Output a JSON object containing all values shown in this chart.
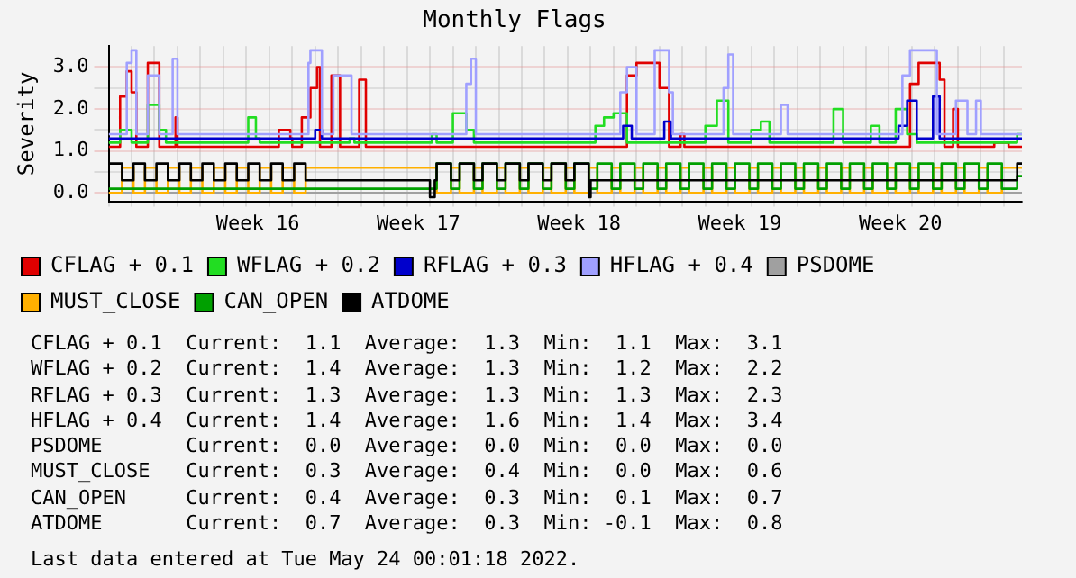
{
  "chart_data": {
    "type": "step",
    "title": "Monthly Flags",
    "ylabel": "Severity",
    "xlim": [
      "2022-04-15T00:00",
      "2022-05-24T19:00"
    ],
    "xticks": [
      {
        "value": "2022-04-15",
        "label": null
      },
      {
        "value": "2022-04-16",
        "label": null
      },
      {
        "value": "2022-04-17",
        "label": null
      },
      {
        "value": "2022-04-18",
        "label": null
      },
      {
        "value": "2022-04-19",
        "label": null
      },
      {
        "value": "2022-04-20",
        "label": null
      },
      {
        "value": "2022-04-21",
        "label": null
      },
      {
        "value": "2022-04-21T12:00",
        "label": "Week 16"
      },
      {
        "value": "2022-04-22",
        "label": null
      },
      {
        "value": "2022-04-23",
        "label": null
      },
      {
        "value": "2022-04-24",
        "label": null
      },
      {
        "value": "2022-04-25",
        "label": null
      },
      {
        "value": "2022-04-26",
        "label": null
      },
      {
        "value": "2022-04-27",
        "label": null
      },
      {
        "value": "2022-04-28",
        "label": null
      },
      {
        "value": "2022-04-28T12:00",
        "label": "Week 17"
      },
      {
        "value": "2022-04-29",
        "label": null
      },
      {
        "value": "2022-04-30",
        "label": null
      },
      {
        "value": "2022-05-01",
        "label": null
      },
      {
        "value": "2022-05-02",
        "label": null
      },
      {
        "value": "2022-05-03",
        "label": null
      },
      {
        "value": "2022-05-04",
        "label": null
      },
      {
        "value": "2022-05-05",
        "label": null
      },
      {
        "value": "2022-05-05T12:00",
        "label": "Week 18"
      },
      {
        "value": "2022-05-06",
        "label": null
      },
      {
        "value": "2022-05-07",
        "label": null
      },
      {
        "value": "2022-05-08",
        "label": null
      },
      {
        "value": "2022-05-09",
        "label": null
      },
      {
        "value": "2022-05-10",
        "label": null
      },
      {
        "value": "2022-05-11",
        "label": null
      },
      {
        "value": "2022-05-12",
        "label": null
      },
      {
        "value": "2022-05-12T12:00",
        "label": "Week 19"
      },
      {
        "value": "2022-05-13",
        "label": null
      },
      {
        "value": "2022-05-14",
        "label": null
      },
      {
        "value": "2022-05-15",
        "label": null
      },
      {
        "value": "2022-05-16",
        "label": null
      },
      {
        "value": "2022-05-17",
        "label": null
      },
      {
        "value": "2022-05-18",
        "label": null
      },
      {
        "value": "2022-05-19",
        "label": null
      },
      {
        "value": "2022-05-19T12:00",
        "label": "Week 20"
      },
      {
        "value": "2022-05-20",
        "label": null
      },
      {
        "value": "2022-05-21",
        "label": null
      },
      {
        "value": "2022-05-22",
        "label": null
      },
      {
        "value": "2022-05-23",
        "label": null
      },
      {
        "value": "2022-05-24",
        "label": null
      }
    ],
    "ylim": [
      -0.2,
      3.5
    ],
    "yticks": [
      {
        "value": 0,
        "label": "0.0"
      },
      {
        "value": 0.5,
        "label": null
      },
      {
        "value": 1,
        "label": "1.0"
      },
      {
        "value": 1.5,
        "label": null
      },
      {
        "value": 2,
        "label": "2.0"
      },
      {
        "value": 2.5,
        "label": null
      },
      {
        "value": 3,
        "label": "3.0"
      }
    ],
    "grid": true,
    "legend": "bottom",
    "line_style": "solid",
    "marker": "none",
    "series": [
      {
        "name": "CFLAG + 0.1",
        "color": "#e00000",
        "x": [
          "2022-04-15T00:00",
          "2022-04-15T12:00",
          "2022-04-15T19:00",
          "2022-04-16T00:00",
          "2022-04-16T05:00",
          "2022-04-16T17:00",
          "2022-04-17T05:00",
          "2022-04-17T22:00",
          "2022-04-18T00:00",
          "2022-04-22T10:00",
          "2022-04-22T22:00",
          "2022-04-23T00:00",
          "2022-04-23T10:00",
          "2022-04-23T19:00",
          "2022-04-24T02:00",
          "2022-04-24T05:00",
          "2022-04-24T17:00",
          "2022-04-25T02:00",
          "2022-04-25T22:00",
          "2022-04-26T05:00",
          "2022-05-07T14:00",
          "2022-05-08T00:00",
          "2022-05-09T00:00",
          "2022-05-09T10:00",
          "2022-05-09T22:00",
          "2022-05-10T02:00",
          "2022-05-19T22:00",
          "2022-05-20T07:00",
          "2022-05-21T05:00",
          "2022-05-21T10:00",
          "2022-05-21T19:00",
          "2022-05-22T00:00",
          "2022-05-23T14:00",
          "2022-05-24T05:00",
          "2022-05-24T19:00"
        ],
        "values": [
          1.1,
          2.3,
          2.9,
          2.4,
          1.1,
          3.1,
          1.1,
          1.8,
          1.1,
          1.5,
          1.3,
          1.1,
          1.8,
          2.5,
          3.0,
          1.1,
          2.8,
          1.1,
          2.7,
          1.1,
          2.8,
          3.1,
          2.5,
          1.1,
          1.4,
          1.1,
          2.6,
          3.1,
          2.7,
          1.1,
          2.0,
          1.1,
          1.2,
          1.1,
          1.1
        ]
      },
      {
        "name": "WFLAG + 0.2",
        "color": "#22dd22",
        "x": [
          "2022-04-15T00:00",
          "2022-04-15T12:00",
          "2022-04-16T00:00",
          "2022-04-16T17:00",
          "2022-04-17T05:00",
          "2022-04-17T12:00",
          "2022-04-21T02:00",
          "2022-04-21T10:00",
          "2022-04-21T14:00",
          "2022-04-25T12:00",
          "2022-04-25T17:00",
          "2022-04-29T02:00",
          "2022-04-29T07:00",
          "2022-04-30T00:00",
          "2022-04-30T14:00",
          "2022-04-30T22:00",
          "2022-05-06T05:00",
          "2022-05-06T14:00",
          "2022-05-07T00:00",
          "2022-05-07T14:00",
          "2022-05-11T00:00",
          "2022-05-11T12:00",
          "2022-05-12T00:00",
          "2022-05-13T00:00",
          "2022-05-13T10:00",
          "2022-05-13T19:00",
          "2022-05-16T14:00",
          "2022-05-17T00:00",
          "2022-05-18T05:00",
          "2022-05-18T14:00",
          "2022-05-19T07:00",
          "2022-05-19T19:00",
          "2022-05-20T05:00",
          "2022-05-24T14:00",
          "2022-05-24T19:00"
        ],
        "values": [
          1.2,
          1.5,
          1.2,
          2.1,
          1.5,
          1.2,
          1.8,
          1.3,
          1.2,
          1.3,
          1.2,
          1.4,
          1.2,
          1.9,
          1.5,
          1.2,
          1.6,
          1.8,
          1.9,
          1.2,
          1.6,
          2.2,
          1.2,
          1.5,
          1.7,
          1.2,
          2.0,
          1.2,
          1.6,
          1.2,
          2.0,
          1.4,
          1.2,
          1.4,
          1.4
        ]
      },
      {
        "name": "RFLAG + 0.3",
        "color": "#0000cc",
        "x": [
          "2022-04-15T00:00",
          "2022-04-24T00:00",
          "2022-04-24T07:00",
          "2022-05-07T10:00",
          "2022-05-07T19:00",
          "2022-05-09T05:00",
          "2022-05-09T12:00",
          "2022-05-19T10:00",
          "2022-05-19T19:00",
          "2022-05-20T05:00",
          "2022-05-20T22:00",
          "2022-05-21T05:00",
          "2022-05-24T19:00"
        ],
        "values": [
          1.3,
          1.5,
          1.3,
          1.6,
          1.3,
          1.7,
          1.3,
          1.6,
          2.2,
          1.3,
          2.3,
          1.3,
          1.3
        ]
      },
      {
        "name": "HFLAG + 0.4",
        "color": "#a0a0ff",
        "x": [
          "2022-04-15T00:00",
          "2022-04-15T19:00",
          "2022-04-16T00:00",
          "2022-04-16T05:00",
          "2022-04-16T17:00",
          "2022-04-17T05:00",
          "2022-04-17T19:00",
          "2022-04-18T00:00",
          "2022-04-23T17:00",
          "2022-04-23T19:00",
          "2022-04-24T07:00",
          "2022-04-24T19:00",
          "2022-04-25T14:00",
          "2022-04-30T14:00",
          "2022-04-30T19:00",
          "2022-05-01T00:00",
          "2022-05-07T07:00",
          "2022-05-07T14:00",
          "2022-05-08T00:00",
          "2022-05-08T19:00",
          "2022-05-09T10:00",
          "2022-05-09T14:00",
          "2022-05-11T19:00",
          "2022-05-12T00:00",
          "2022-05-12T05:00",
          "2022-05-14T07:00",
          "2022-05-14T14:00",
          "2022-05-19T14:00",
          "2022-05-19T22:00",
          "2022-05-21T02:00",
          "2022-05-21T22:00",
          "2022-05-22T10:00",
          "2022-05-22T19:00",
          "2022-05-23T00:00",
          "2022-05-24T19:00"
        ],
        "values": [
          1.4,
          3.1,
          3.4,
          1.4,
          2.8,
          1.4,
          3.2,
          1.4,
          3.1,
          3.4,
          1.4,
          2.8,
          1.4,
          2.6,
          3.2,
          1.4,
          2.4,
          3.0,
          1.4,
          3.4,
          2.4,
          1.4,
          2.5,
          3.3,
          1.4,
          2.1,
          1.4,
          2.8,
          3.4,
          1.4,
          2.2,
          1.4,
          2.2,
          1.4,
          1.4
        ]
      },
      {
        "name": "PSDOME",
        "color": "#a0a0a0",
        "x": [
          "2022-04-15T00:00",
          "2022-05-24T19:00"
        ],
        "values": [
          0,
          0
        ]
      },
      {
        "name": "MUST_CLOSE",
        "color": "#ffb000",
        "x": [
          "2022-04-15T00:00",
          "2022-04-15T14:00",
          "2022-04-16T02:00",
          "2022-04-16T14:00",
          "2022-04-17T02:00",
          "2022-04-17T14:00",
          "2022-04-18T02:00",
          "2022-04-18T14:00",
          "2022-04-19T02:00",
          "2022-04-19T14:00",
          "2022-04-20T02:00",
          "2022-04-20T14:00",
          "2022-04-21T02:00",
          "2022-04-21T14:00",
          "2022-04-22T02:00",
          "2022-04-22T14:00",
          "2022-04-23T02:00",
          "2022-04-23T14:00",
          "2022-04-29T07:00",
          "2022-04-29T22:00",
          "2022-04-30T07:00",
          "2022-04-30T22:00",
          "2022-05-01T07:00",
          "2022-05-01T22:00",
          "2022-05-02T07:00",
          "2022-05-02T22:00",
          "2022-05-03T07:00",
          "2022-05-03T22:00",
          "2022-05-04T07:00",
          "2022-05-04T22:00",
          "2022-05-05T07:00",
          "2022-05-05T22:00",
          "2022-05-06T07:00",
          "2022-05-06T22:00",
          "2022-05-07T07:00",
          "2022-05-07T22:00",
          "2022-05-08T07:00",
          "2022-05-08T22:00",
          "2022-05-09T07:00",
          "2022-05-09T22:00",
          "2022-05-10T07:00",
          "2022-05-10T22:00",
          "2022-05-11T07:00",
          "2022-05-11T22:00",
          "2022-05-12T07:00",
          "2022-05-12T22:00",
          "2022-05-13T07:00",
          "2022-05-13T22:00",
          "2022-05-14T07:00",
          "2022-05-14T22:00",
          "2022-05-15T07:00",
          "2022-05-15T22:00",
          "2022-05-16T07:00",
          "2022-05-16T22:00",
          "2022-05-17T07:00",
          "2022-05-17T22:00",
          "2022-05-18T07:00",
          "2022-05-18T22:00",
          "2022-05-19T07:00",
          "2022-05-19T22:00",
          "2022-05-20T07:00",
          "2022-05-20T22:00",
          "2022-05-21T07:00",
          "2022-05-21T22:00",
          "2022-05-22T07:00",
          "2022-05-22T22:00",
          "2022-05-23T07:00",
          "2022-05-23T22:00",
          "2022-05-24T19:00"
        ],
        "values": [
          0,
          0.6,
          0,
          0.6,
          0,
          0.6,
          0,
          0.6,
          0,
          0.6,
          0,
          0.6,
          0,
          0.6,
          0,
          0.6,
          0,
          0.6,
          0,
          0.6,
          0,
          0.6,
          0,
          0.6,
          0,
          0.6,
          0,
          0.6,
          0,
          0.6,
          0,
          0.6,
          0,
          0.6,
          0,
          0.6,
          0,
          0.6,
          0,
          0.6,
          0,
          0.6,
          0,
          0.6,
          0,
          0.6,
          0,
          0.6,
          0,
          0.6,
          0,
          0.6,
          0,
          0.6,
          0,
          0.6,
          0,
          0.6,
          0,
          0.6,
          0,
          0.6,
          0,
          0.6,
          0,
          0.6,
          0,
          0.6,
          0.6
        ]
      },
      {
        "name": "CAN_OPEN",
        "color": "#00a000",
        "x": [
          "2022-04-15T00:00",
          "2022-04-29T07:00",
          "2022-04-29T22:00",
          "2022-04-30T07:00",
          "2022-04-30T22:00",
          "2022-05-01T07:00",
          "2022-05-01T22:00",
          "2022-05-02T07:00",
          "2022-05-02T22:00",
          "2022-05-03T07:00",
          "2022-05-03T22:00",
          "2022-05-04T07:00",
          "2022-05-04T22:00",
          "2022-05-05T07:00",
          "2022-05-05T22:00",
          "2022-05-06T07:00",
          "2022-05-06T22:00",
          "2022-05-07T07:00",
          "2022-05-07T22:00",
          "2022-05-08T07:00",
          "2022-05-08T22:00",
          "2022-05-09T07:00",
          "2022-05-09T22:00",
          "2022-05-10T07:00",
          "2022-05-10T22:00",
          "2022-05-11T07:00",
          "2022-05-11T22:00",
          "2022-05-12T07:00",
          "2022-05-12T22:00",
          "2022-05-13T07:00",
          "2022-05-13T22:00",
          "2022-05-14T07:00",
          "2022-05-14T22:00",
          "2022-05-15T07:00",
          "2022-05-15T22:00",
          "2022-05-16T07:00",
          "2022-05-16T22:00",
          "2022-05-17T07:00",
          "2022-05-17T22:00",
          "2022-05-18T07:00",
          "2022-05-18T22:00",
          "2022-05-19T07:00",
          "2022-05-19T22:00",
          "2022-05-20T07:00",
          "2022-05-20T22:00",
          "2022-05-21T07:00",
          "2022-05-21T22:00",
          "2022-05-22T07:00",
          "2022-05-22T22:00",
          "2022-05-23T07:00",
          "2022-05-23T22:00",
          "2022-05-24T14:00",
          "2022-05-24T19:00"
        ],
        "values": [
          0.1,
          0.7,
          0.1,
          0.7,
          0.1,
          0.7,
          0.1,
          0.7,
          0.1,
          0.7,
          0.1,
          0.7,
          0.1,
          0.7,
          0.1,
          0.7,
          0.1,
          0.7,
          0.1,
          0.7,
          0.1,
          0.7,
          0.1,
          0.7,
          0.1,
          0.7,
          0.1,
          0.7,
          0.1,
          0.7,
          0.1,
          0.7,
          0.1,
          0.7,
          0.1,
          0.7,
          0.1,
          0.7,
          0.1,
          0.7,
          0.1,
          0.7,
          0.1,
          0.7,
          0.1,
          0.7,
          0.1,
          0.7,
          0.1,
          0.7,
          0.1,
          0.4,
          0.4
        ]
      },
      {
        "name": "ATDOME",
        "color": "#000000",
        "x": [
          "2022-04-15T00:00",
          "2022-04-15T14:00",
          "2022-04-16T02:00",
          "2022-04-16T14:00",
          "2022-04-17T02:00",
          "2022-04-17T14:00",
          "2022-04-18T02:00",
          "2022-04-18T14:00",
          "2022-04-19T02:00",
          "2022-04-19T14:00",
          "2022-04-20T02:00",
          "2022-04-20T14:00",
          "2022-04-21T02:00",
          "2022-04-21T14:00",
          "2022-04-22T02:00",
          "2022-04-22T14:00",
          "2022-04-23T02:00",
          "2022-04-23T14:00",
          "2022-04-29T00:00",
          "2022-04-29T05:00",
          "2022-04-29T07:00",
          "2022-04-29T22:00",
          "2022-04-30T07:00",
          "2022-04-30T22:00",
          "2022-05-01T07:00",
          "2022-05-01T22:00",
          "2022-05-02T07:00",
          "2022-05-02T22:00",
          "2022-05-03T07:00",
          "2022-05-03T22:00",
          "2022-05-04T07:00",
          "2022-05-04T22:00",
          "2022-05-05T07:00",
          "2022-05-05T22:00",
          "2022-05-06T00:00",
          "2022-05-24T14:00",
          "2022-05-24T19:00"
        ],
        "values": [
          0.7,
          0.3,
          0.7,
          0.3,
          0.7,
          0.3,
          0.7,
          0.3,
          0.7,
          0.3,
          0.7,
          0.3,
          0.7,
          0.3,
          0.7,
          0.3,
          0.7,
          0.3,
          -0.1,
          0.3,
          0.7,
          0.3,
          0.7,
          0.3,
          0.7,
          0.3,
          0.7,
          0.3,
          0.7,
          0.3,
          0.7,
          0.3,
          0.7,
          -0.1,
          0.3,
          0.7,
          0.7
        ]
      }
    ],
    "annotations": [
      "CFLAG + 0.1  Current:  1.1  Average:  1.3  Min:  1.1  Max:  3.1",
      "WFLAG + 0.2  Current:  1.4  Average:  1.3  Min:  1.2  Max:  2.2",
      "RFLAG + 0.3  Current:  1.3  Average:  1.3  Min:  1.3  Max:  2.3",
      "HFLAG + 0.4  Current:  1.4  Average:  1.6  Min:  1.4  Max:  3.4",
      "PSDOME       Current:  0.0  Average:  0.0  Min:  0.0  Max:  0.0",
      "MUST_CLOSE   Current:  0.3  Average:  0.4  Min:  0.0  Max:  0.6",
      "CAN_OPEN     Current:  0.4  Average:  0.3  Min:  0.1  Max:  0.7",
      "ATDOME       Current:  0.7  Average:  0.3  Min: -0.1  Max:  0.8",
      "Last data entered at Tue May 24 00:01:18 2022."
    ]
  }
}
